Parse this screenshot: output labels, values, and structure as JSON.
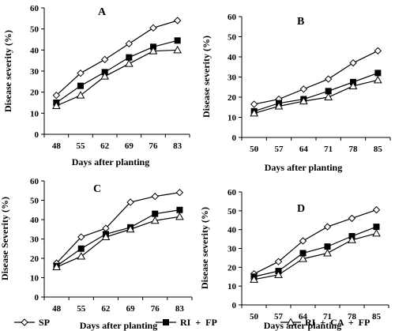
{
  "legend": [
    {
      "name": "SP",
      "marker": "diamond"
    },
    {
      "name": "RI  +  FP",
      "marker": "square"
    },
    {
      "name": "RI  +  CA  +  FP",
      "marker": "triangle"
    }
  ],
  "chart_data": [
    {
      "type": "line",
      "title": "A",
      "xlabel": "Days after planting",
      "ylabel": "Disease severity (%)",
      "x": [
        48,
        55,
        62,
        69,
        76,
        83
      ],
      "ylim": [
        0,
        60
      ],
      "yticks": [
        0,
        10,
        20,
        30,
        40,
        50,
        60
      ],
      "series": [
        {
          "name": "SP",
          "marker": "diamond",
          "values": [
            18.5,
            29,
            35.5,
            43,
            50.5,
            54
          ]
        },
        {
          "name": "RI  +  FP",
          "marker": "square",
          "values": [
            15,
            23,
            29.5,
            36.5,
            41.5,
            44.5
          ]
        },
        {
          "name": "RI  +  CA  +  FP",
          "marker": "triangle",
          "values": [
            13.5,
            18.5,
            27.5,
            33.5,
            39.5,
            40
          ]
        }
      ]
    },
    {
      "type": "line",
      "title": "B",
      "xlabel": "Days after planting",
      "ylabel": "Disease severity (%)",
      "x": [
        50,
        57,
        64,
        71,
        78,
        85
      ],
      "ylim": [
        0,
        60
      ],
      "yticks": [
        0,
        10,
        20,
        30,
        40,
        50,
        60
      ],
      "series": [
        {
          "name": "SP",
          "marker": "diamond",
          "values": [
            16.5,
            19,
            24,
            29,
            37,
            43
          ]
        },
        {
          "name": "RI  +  FP",
          "marker": "square",
          "values": [
            13,
            17,
            19,
            23,
            27.5,
            32
          ]
        },
        {
          "name": "RI  +  CA  +  FP",
          "marker": "triangle",
          "values": [
            12,
            15.5,
            18,
            20,
            25.5,
            28.5
          ]
        }
      ]
    },
    {
      "type": "line",
      "title": "C",
      "xlabel": "Days after planting",
      "ylabel": "Disease Severity (%)",
      "x": [
        48,
        55,
        62,
        69,
        76,
        83
      ],
      "ylim": [
        0,
        60
      ],
      "yticks": [
        0,
        10,
        20,
        30,
        40,
        50,
        60
      ],
      "series": [
        {
          "name": "SP",
          "marker": "diamond",
          "values": [
            17.5,
            31,
            35.5,
            49,
            52,
            54
          ]
        },
        {
          "name": "RI  +  FP",
          "marker": "square",
          "values": [
            16,
            25,
            32.5,
            36,
            43,
            45
          ]
        },
        {
          "name": "RI  +  CA  +  FP",
          "marker": "triangle",
          "values": [
            15.5,
            21,
            31,
            35,
            39.5,
            41.5
          ]
        }
      ]
    },
    {
      "type": "line",
      "title": "D",
      "xlabel": "Days after planting",
      "ylabel": "Disease severity (%)",
      "x": [
        50,
        57,
        64,
        71,
        78,
        85
      ],
      "ylim": [
        0,
        60
      ],
      "yticks": [
        0,
        10,
        20,
        30,
        40,
        50,
        60
      ],
      "series": [
        {
          "name": "SP",
          "marker": "diamond",
          "values": [
            16.5,
            23,
            34,
            41.5,
            46,
            50.5
          ]
        },
        {
          "name": "RI  +  FP",
          "marker": "square",
          "values": [
            15,
            18,
            27.5,
            31,
            36.5,
            41.5
          ]
        },
        {
          "name": "RI  +  CA  +  FP",
          "marker": "triangle",
          "values": [
            13.5,
            16,
            24.5,
            27.5,
            34.5,
            38
          ]
        }
      ]
    }
  ]
}
